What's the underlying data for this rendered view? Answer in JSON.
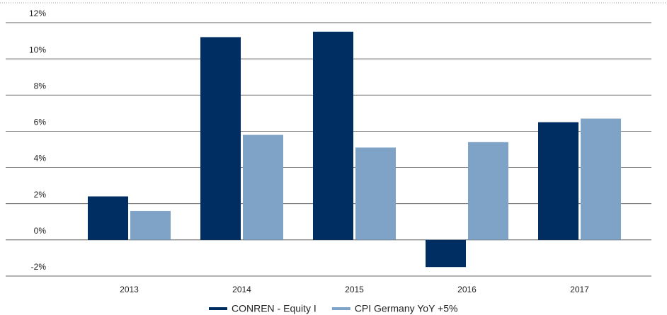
{
  "chart_data": {
    "type": "bar",
    "categories": [
      "2013",
      "2014",
      "2015",
      "2016",
      "2017"
    ],
    "series": [
      {
        "name": "CONREN - Equity I",
        "color": "#002d62",
        "values": [
          2.4,
          11.2,
          11.5,
          -1.5,
          6.5
        ]
      },
      {
        "name": "CPI Germany YoY +5%",
        "color": "#7fa3c6",
        "values": [
          1.6,
          5.8,
          5.1,
          5.4,
          6.7
        ]
      }
    ],
    "ylim": [
      -2,
      12
    ],
    "yticks": [
      {
        "value": -2,
        "label": "-2%"
      },
      {
        "value": 0,
        "label": "0%"
      },
      {
        "value": 2,
        "label": "2%"
      },
      {
        "value": 4,
        "label": "4%"
      },
      {
        "value": 6,
        "label": "6%"
      },
      {
        "value": 8,
        "label": "8%"
      },
      {
        "value": 10,
        "label": "10%"
      },
      {
        "value": 12,
        "label": "12%"
      }
    ],
    "grid": true,
    "legend": "bottom"
  }
}
